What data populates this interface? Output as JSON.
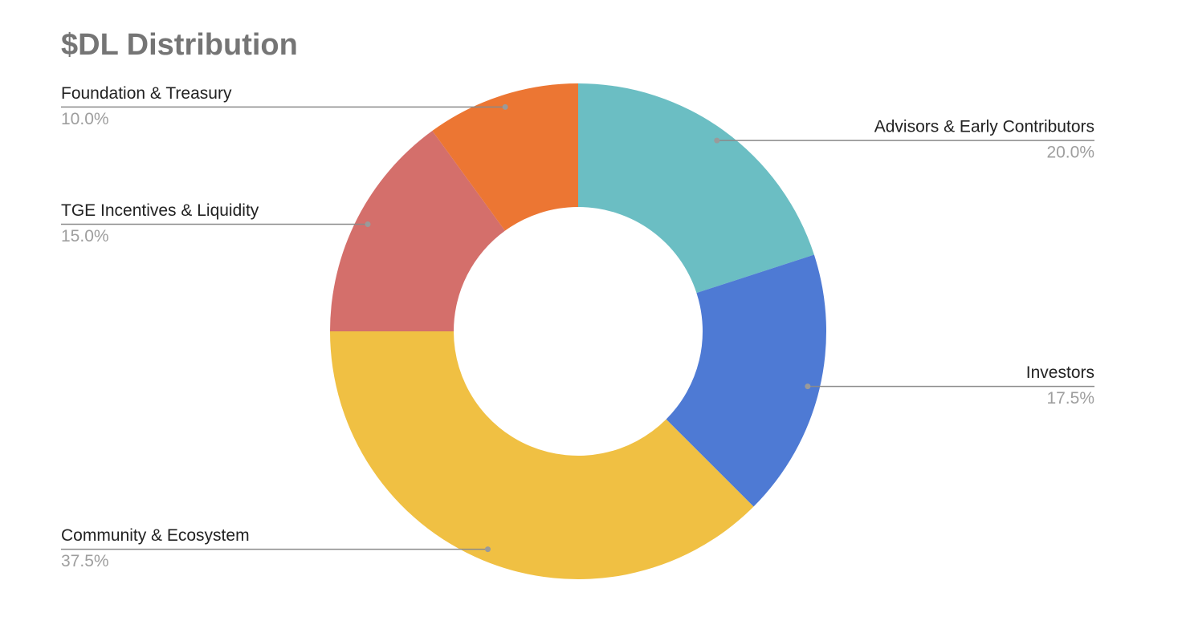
{
  "chart_data": {
    "type": "donut",
    "title": "$DL Distribution",
    "categories": [
      "Advisors & Early Contributors",
      "Investors",
      "Community & Ecosystem",
      "TGE Incentives & Liquidity",
      "Foundation & Treasury"
    ],
    "values": [
      20.0,
      17.5,
      37.5,
      15.0,
      10.0
    ],
    "value_labels": [
      "20.0%",
      "17.5%",
      "37.5%",
      "15.0%",
      "10.0%"
    ],
    "colors": [
      "#6bbec3",
      "#4e7ad4",
      "#f0c043",
      "#d46f6b",
      "#ec7633"
    ]
  }
}
